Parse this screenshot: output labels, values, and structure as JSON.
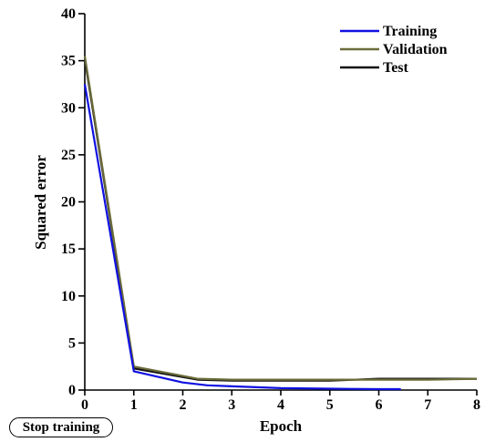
{
  "chart_data": {
    "type": "line",
    "xlabel": "Epoch",
    "ylabel": "Squared error",
    "xlim": [
      0,
      8
    ],
    "ylim": [
      0,
      40
    ],
    "xticks": [
      0,
      1,
      2,
      3,
      4,
      5,
      6,
      7,
      8
    ],
    "yticks": [
      0,
      5,
      10,
      15,
      20,
      25,
      30,
      35,
      40
    ],
    "grid": false,
    "legend_position": "top-right",
    "series": [
      {
        "name": "Training",
        "color": "#1010e0",
        "x": [
          0,
          1,
          2,
          2.5,
          3,
          4,
          5,
          6,
          6.45
        ],
        "y": [
          32.5,
          2.0,
          0.8,
          0.5,
          0.4,
          0.2,
          0.15,
          0.1,
          0.1
        ]
      },
      {
        "name": "Validation",
        "color": "#6b6b3a",
        "x": [
          0,
          1,
          2.3,
          3,
          4,
          5,
          6,
          7,
          8
        ],
        "y": [
          35.5,
          2.5,
          1.2,
          1.1,
          1.1,
          1.1,
          1.1,
          1.1,
          1.2
        ]
      },
      {
        "name": "Test",
        "color": "#111111",
        "x": [
          0,
          1,
          2.3,
          3,
          4,
          5,
          6,
          7,
          8
        ],
        "y": [
          35.2,
          2.3,
          1.1,
          1.0,
          1.0,
          1.0,
          1.2,
          1.2,
          1.2
        ]
      }
    ]
  },
  "controls": {
    "stop_training_label": "Stop training"
  }
}
